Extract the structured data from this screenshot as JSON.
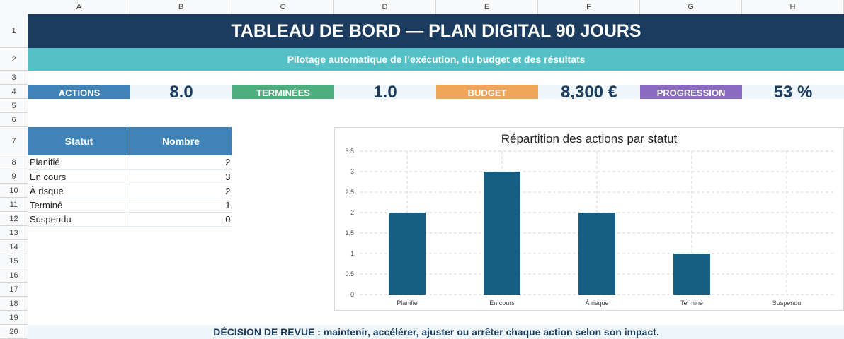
{
  "columns": [
    "A",
    "B",
    "C",
    "D",
    "E",
    "F",
    "G",
    "H"
  ],
  "rows": [
    "1",
    "2",
    "3",
    "4",
    "5",
    "6",
    "7",
    "8",
    "9",
    "10",
    "11",
    "12",
    "13",
    "14",
    "15",
    "16",
    "17",
    "18",
    "19",
    "20"
  ],
  "header": {
    "title": "TABLEAU DE BORD — PLAN DIGITAL 90 JOURS",
    "subtitle": "Pilotage automatique de l’exécution, du budget et des résultats"
  },
  "kpis": [
    {
      "label": "ACTIONS",
      "value": "8.0",
      "color": "#3f83b7"
    },
    {
      "label": "TERMINÉES",
      "value": "1.0",
      "color": "#4caf7d"
    },
    {
      "label": "BUDGET",
      "value": "8,300 €",
      "color": "#f0a65a"
    },
    {
      "label": "PROGRESSION",
      "value": "53 %",
      "color": "#8a6bbf"
    }
  ],
  "status_table": {
    "headers": [
      "Statut",
      "Nombre"
    ],
    "rows": [
      {
        "statut": "Planifié",
        "nombre": "2"
      },
      {
        "statut": "En cours",
        "nombre": "3"
      },
      {
        "statut": "À risque",
        "nombre": "2"
      },
      {
        "statut": "Terminé",
        "nombre": "1"
      },
      {
        "statut": "Suspendu",
        "nombre": "0"
      }
    ]
  },
  "chart_data": {
    "type": "bar",
    "title": "Répartition des actions par statut",
    "categories": [
      "Planifié",
      "En cours",
      "À risque",
      "Terminé",
      "Suspendu"
    ],
    "values": [
      2,
      3,
      2,
      1,
      0
    ],
    "ylim": [
      0,
      3.5
    ],
    "yticks": [
      "0",
      "0.5",
      "1",
      "1.5",
      "2",
      "2.5",
      "3",
      "3.5"
    ],
    "grid": true,
    "bar_color": "#165e82"
  },
  "footer": {
    "text": "DÉCISION DE REVUE : maintenir, accélérer, ajuster ou arrêter chaque action selon son impact."
  }
}
